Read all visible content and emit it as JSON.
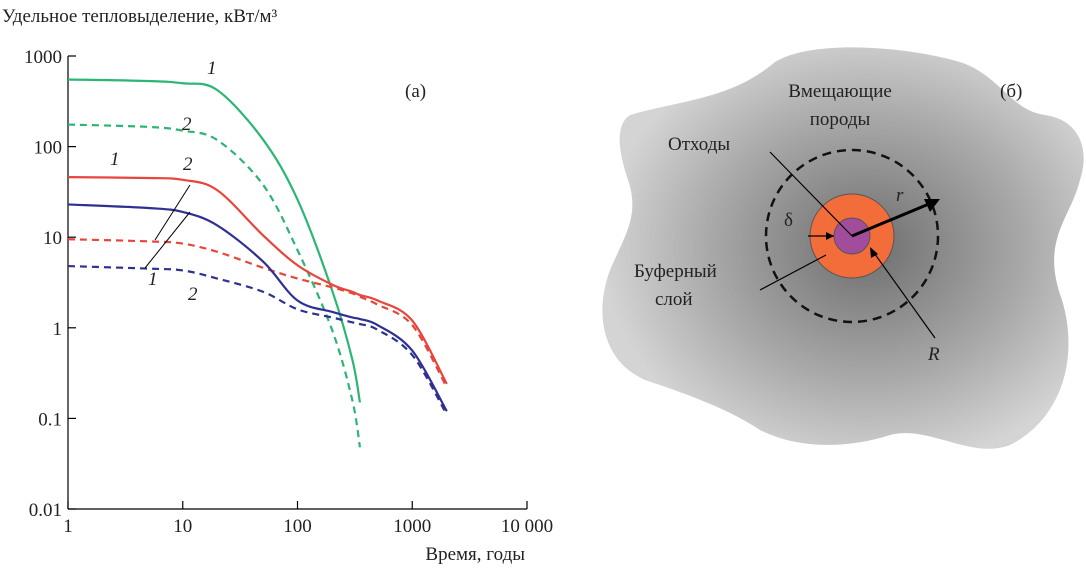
{
  "chart_data": {
    "type": "line",
    "log_x": true,
    "log_y": true,
    "y_label": "Удельное тепловыделение, кВт/м³",
    "x_label": "Время, годы",
    "panel": "(а)",
    "x": [
      1,
      5,
      10,
      20,
      50,
      100,
      200,
      300,
      350,
      500,
      1000,
      2000
    ],
    "series": [
      {
        "name": "1",
        "color": "#2bb673",
        "dash": false,
        "values": [
          550,
          530,
          500,
          420,
          120,
          26,
          2.6,
          0.45,
          0.15,
          null,
          null,
          null
        ]
      },
      {
        "name": "2",
        "color": "#2bb673",
        "dash": true,
        "values": [
          175,
          165,
          150,
          118,
          38,
          7.2,
          0.95,
          0.16,
          0.048,
          null,
          null,
          null
        ]
      },
      {
        "name": "1",
        "color": "#e8453c",
        "dash": false,
        "values": [
          46,
          45,
          43,
          33,
          10.5,
          4.9,
          3.0,
          2.5,
          2.3,
          2.0,
          1.2,
          0.24
        ]
      },
      {
        "name": "2",
        "color": "#e8453c",
        "dash": true,
        "values": [
          9.5,
          9,
          8.5,
          6.9,
          4.6,
          3.5,
          2.8,
          2.4,
          2.2,
          1.8,
          1.07,
          0.22
        ]
      },
      {
        "name": "1",
        "color": "#2e3192",
        "dash": false,
        "values": [
          23,
          21,
          19,
          13.5,
          5.4,
          2.0,
          1.5,
          1.3,
          1.25,
          1.07,
          0.56,
          0.12
        ]
      },
      {
        "name": "2",
        "color": "#2e3192",
        "dash": true,
        "values": [
          4.8,
          4.5,
          4.3,
          3.5,
          2.5,
          1.6,
          1.3,
          1.15,
          1.1,
          0.95,
          0.5,
          0.11
        ]
      }
    ],
    "xlim": [
      1,
      10000
    ],
    "xticks": [
      1,
      10,
      100,
      1000,
      {
        "value": 10000,
        "label": "10 000"
      }
    ],
    "ylim": [
      0.01,
      1000
    ],
    "yticks": [
      0.01,
      0.1,
      1,
      10,
      100,
      1000
    ]
  },
  "diagram": {
    "panel": "(б)",
    "host_rock": [
      "Вмещающие",
      "породы"
    ],
    "waste": "Отходы",
    "buffer": [
      "Буферный",
      "слой"
    ],
    "delta": "δ",
    "r": "r",
    "R": "R"
  }
}
